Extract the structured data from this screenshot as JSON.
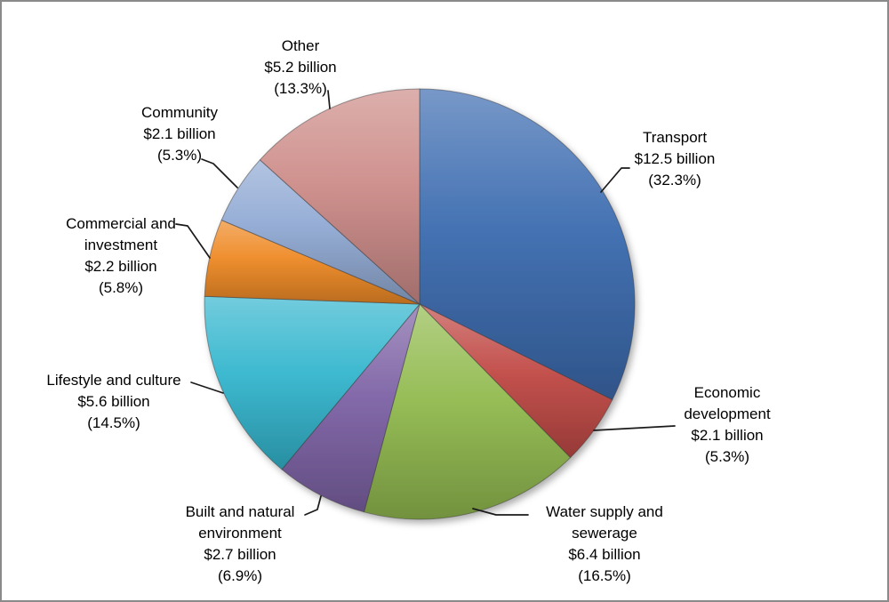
{
  "chart_data": {
    "type": "pie",
    "title": "",
    "start_angle_deg": 0,
    "direction": "clockwise",
    "legend": "none",
    "label_style": "outside-with-leader-lines",
    "slices": [
      {
        "label": "Transport",
        "value": 12.5,
        "value_text": "$12.5 billion",
        "percent": 32.3,
        "color": "#3C6CB0"
      },
      {
        "label": "Economic development",
        "value": 2.1,
        "value_text": "$2.1 billion",
        "percent": 5.3,
        "color": "#C04A46"
      },
      {
        "label": "Water supply and sewerage",
        "value": 6.4,
        "value_text": "$6.4 billion",
        "percent": 16.5,
        "color": "#92BA4F"
      },
      {
        "label": "Built and natural environment",
        "value": 2.7,
        "value_text": "$2.7 billion",
        "percent": 6.9,
        "color": "#7E63A5"
      },
      {
        "label": "Lifestyle and culture",
        "value": 5.6,
        "value_text": "$5.6 billion",
        "percent": 14.5,
        "color": "#35B6CE"
      },
      {
        "label": "Commercial and investment",
        "value": 2.2,
        "value_text": "$2.2 billion",
        "percent": 5.8,
        "color": "#EE8A26"
      },
      {
        "label": "Community",
        "value": 2.1,
        "value_text": "$2.1 billion",
        "percent": 5.3,
        "color": "#92ABD4"
      },
      {
        "label": "Other",
        "value": 5.2,
        "value_text": "$5.2 billion",
        "percent": 13.3,
        "color": "#CD8C89"
      }
    ]
  },
  "labels": {
    "transport": {
      "lines": [
        "Transport",
        "$12.5 billion",
        "(32.3%)"
      ]
    },
    "economic": {
      "lines": [
        "Economic",
        "development",
        "$2.1 billion",
        "(5.3%)"
      ]
    },
    "water": {
      "lines": [
        "Water supply and",
        "sewerage",
        "$6.4 billion",
        "(16.5%)"
      ]
    },
    "built": {
      "lines": [
        "Built and natural",
        "environment",
        "$2.7 billion",
        "(6.9%)"
      ]
    },
    "lifestyle": {
      "lines": [
        "Lifestyle and culture",
        "$5.6 billion",
        "(14.5%)"
      ]
    },
    "commercial": {
      "lines": [
        "Commercial and",
        "investment",
        "$2.2 billion",
        "(5.8%)"
      ]
    },
    "community": {
      "lines": [
        "Community",
        "$2.1 billion",
        "(5.3%)"
      ]
    },
    "other": {
      "lines": [
        "Other",
        "$5.2 billion",
        "(13.3%)"
      ]
    }
  }
}
